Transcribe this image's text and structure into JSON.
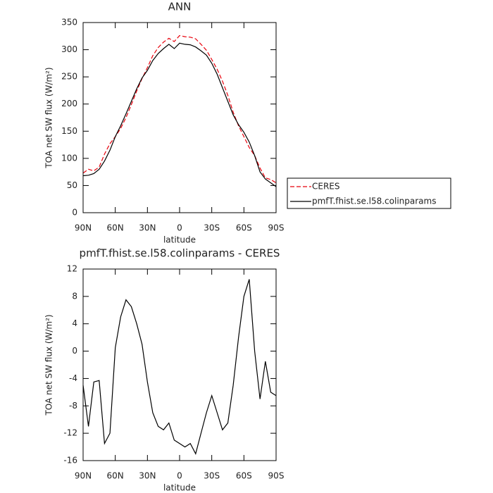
{
  "chart_data": [
    {
      "type": "line",
      "title": "ANN",
      "x_label": "latitude",
      "y_label": "TOA net SW flux (W/m²)",
      "x": [
        90,
        85,
        80,
        75,
        70,
        65,
        60,
        55,
        50,
        45,
        40,
        35,
        30,
        25,
        20,
        15,
        10,
        5,
        0,
        -5,
        -10,
        -15,
        -20,
        -25,
        -30,
        -35,
        -40,
        -45,
        -50,
        -55,
        -60,
        -65,
        -70,
        -75,
        -80,
        -85,
        -90
      ],
      "series": [
        {
          "name": "CERES",
          "color": "#e8000b",
          "dashed": true,
          "values": [
            73,
            80,
            77,
            84,
            108,
            127,
            140,
            155,
            175,
            199,
            224,
            247,
            267,
            289,
            304,
            314,
            321,
            315,
            326,
            324,
            323,
            320,
            310,
            299,
            282,
            264,
            242,
            216,
            185,
            160,
            140,
            120,
            105,
            82,
            64,
            61,
            55
          ]
        },
        {
          "name": "pmfT.fhist.se.l58.colinparams",
          "color": "#000000",
          "dashed": false,
          "values": [
            68,
            69,
            72,
            80,
            95,
            115,
            140,
            160,
            182,
            205,
            228,
            248,
            262,
            280,
            293,
            302,
            310,
            302,
            312,
            310,
            309,
            305,
            298,
            290,
            275,
            255,
            230,
            205,
            180,
            162,
            148,
            130,
            105,
            75,
            62,
            55,
            48
          ]
        }
      ],
      "xlim": [
        90,
        -90
      ],
      "xticks": [
        {
          "value": 90,
          "label": "90N"
        },
        {
          "value": 60,
          "label": "60N"
        },
        {
          "value": 30,
          "label": "30N"
        },
        0,
        {
          "value": -30,
          "label": "30S"
        },
        {
          "value": -60,
          "label": "60S"
        },
        {
          "value": -90,
          "label": "90S"
        }
      ],
      "ylim": [
        0,
        350
      ],
      "yticks": [
        0,
        50,
        100,
        150,
        200,
        250,
        300,
        350
      ],
      "legend": "right"
    },
    {
      "type": "line",
      "title": "pmfT.fhist.se.l58.colinparams - CERES",
      "x_label": "latitude",
      "y_label": "TOA net SW flux (W/m²)",
      "x": [
        90,
        85,
        80,
        75,
        70,
        65,
        60,
        55,
        50,
        45,
        40,
        35,
        30,
        25,
        20,
        15,
        10,
        5,
        0,
        -5,
        -10,
        -15,
        -20,
        -25,
        -30,
        -35,
        -40,
        -45,
        -50,
        -55,
        -60,
        -65,
        -70,
        -75,
        -80,
        -85,
        -90
      ],
      "series": [
        {
          "color": "#000000",
          "dashed": false,
          "values": [
            -5,
            -11,
            -4.5,
            -4.3,
            -13.5,
            -12,
            0.5,
            5,
            7.5,
            6.5,
            4,
            1,
            -4.5,
            -9,
            -11,
            -11.5,
            -10.5,
            -13,
            -13.5,
            -14,
            -13.5,
            -15,
            -12,
            -9,
            -6.5,
            -9,
            -11.5,
            -10.5,
            -5,
            2,
            8,
            10.5,
            0,
            -7,
            -1.5,
            -6,
            -6.5
          ]
        }
      ],
      "xlim": [
        90,
        -90
      ],
      "xticks": [
        {
          "value": 90,
          "label": "90N"
        },
        {
          "value": 60,
          "label": "60N"
        },
        {
          "value": 30,
          "label": "30N"
        },
        0,
        {
          "value": -30,
          "label": "30S"
        },
        {
          "value": -60,
          "label": "60S"
        },
        {
          "value": -90,
          "label": "90S"
        }
      ],
      "ylim": [
        -16,
        12
      ],
      "yticks": [
        -16,
        -12,
        -8,
        -4,
        0,
        4,
        8,
        12
      ]
    }
  ]
}
